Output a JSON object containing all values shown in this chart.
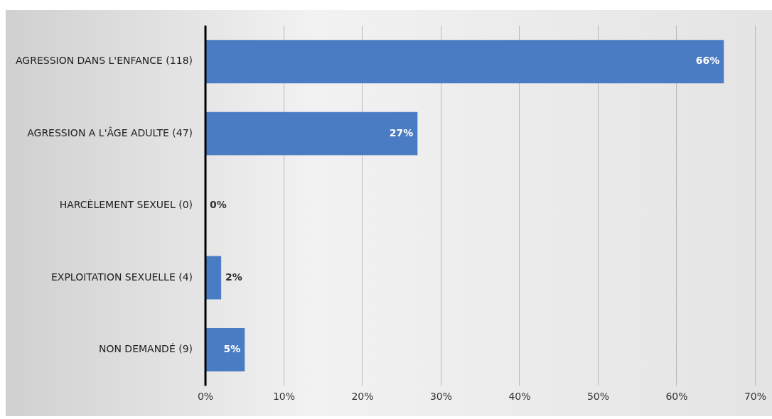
{
  "chart_data": {
    "type": "bar",
    "orientation": "horizontal",
    "categories": [
      "AGRESSION DANS L'ENFANCE (118)",
      "AGRESSION A L'ÂGE ADULTE (47)",
      "HARCÈLEMENT SEXUEL (0)",
      "EXPLOITATION SEXUELLE (4)",
      "NON DEMANDÉ (9)"
    ],
    "values": [
      66,
      27,
      0,
      2,
      5
    ],
    "value_labels": [
      "66%",
      "27%",
      "0%",
      "2%",
      "5%"
    ],
    "color": "#4a7cc4",
    "xlim": [
      0,
      70
    ],
    "xticks": [
      {
        "value": 0,
        "label": "0%"
      },
      {
        "value": 10,
        "label": "10%"
      },
      {
        "value": 20,
        "label": "20%"
      },
      {
        "value": 30,
        "label": "30%"
      },
      {
        "value": 40,
        "label": "40%"
      },
      {
        "value": 50,
        "label": "50%"
      },
      {
        "value": 60,
        "label": "60%"
      },
      {
        "value": 70,
        "label": "70%"
      }
    ],
    "grid": "x",
    "legend": false
  }
}
